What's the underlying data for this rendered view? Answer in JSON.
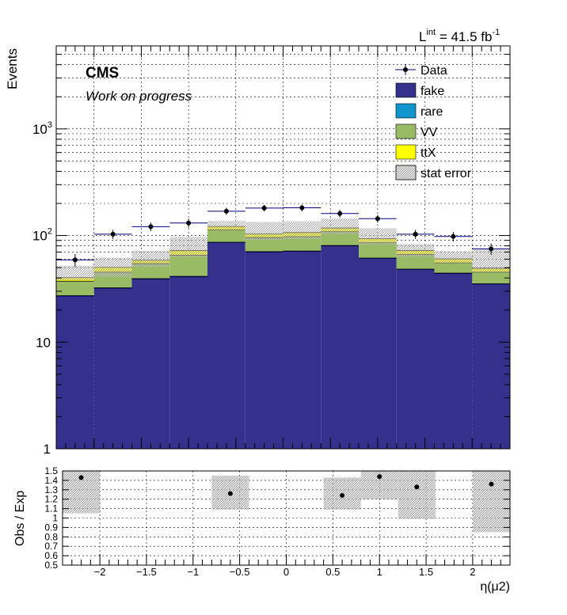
{
  "header": {
    "lumi_L": "L",
    "lumi_sup": "int",
    "lumi_value": " = 41.5 fb",
    "lumi_unit_sup": "-1"
  },
  "labels": {
    "cms": "CMS",
    "wip": "Work on progress"
  },
  "chart_data": [
    {
      "type": "bar",
      "stacked": true,
      "ylabel": "Events",
      "xlim": [
        -2.4,
        2.4
      ],
      "ylim": [
        1,
        6000
      ],
      "ylog": true,
      "grid": true,
      "legend_position": "top-right",
      "bin_edges": [
        -2.4,
        -2.0,
        -1.6,
        -1.2,
        -0.8,
        -0.4,
        0.0,
        0.4,
        0.8,
        1.2,
        1.6,
        2.0,
        2.4
      ],
      "data_x": [
        -2.2,
        -1.8,
        -1.4,
        -1.0,
        -0.6,
        -0.2,
        0.2,
        0.6,
        1.0,
        1.4,
        1.8,
        2.2
      ],
      "y_tick_labels": [
        {
          "value": 1,
          "label": "1"
        },
        {
          "value": 10,
          "label": "10"
        },
        {
          "value": 100,
          "label": "10",
          "sup": "2"
        },
        {
          "value": 1000,
          "label": "10",
          "sup": "3"
        }
      ],
      "series": [
        {
          "name": "fake",
          "color": "#35308b",
          "values": [
            27,
            32,
            39,
            41,
            86,
            70,
            71,
            80,
            61,
            48,
            44,
            35
          ]
        },
        {
          "name": "rare",
          "color": "#1095cc",
          "values": [
            0.3,
            0.3,
            0.4,
            0.4,
            0.6,
            0.6,
            0.6,
            0.6,
            0.5,
            0.4,
            0.4,
            0.3
          ]
        },
        {
          "name": "VV",
          "color": "#99bb66",
          "values": [
            10,
            13,
            15,
            24,
            26,
            25,
            26,
            28,
            24,
            18,
            11,
            10
          ]
        },
        {
          "name": "ttX",
          "color": "#ffff00",
          "values": [
            3,
            5,
            4,
            7,
            9,
            8,
            9,
            9,
            8,
            6,
            5,
            4
          ]
        }
      ],
      "stat_error": {
        "name": "stat error",
        "lower": [
          38,
          41,
          51,
          63,
          112,
          91,
          93,
          103,
          82,
          63,
          55,
          45
        ],
        "upper": [
          52,
          62,
          72,
          97,
          137,
          134,
          136,
          144,
          117,
          83,
          71,
          75
        ]
      },
      "data": {
        "name": "Data",
        "values": [
          59,
          103,
          121,
          131,
          169,
          181,
          182,
          161,
          144,
          103,
          98,
          75
        ],
        "errors": [
          8,
          10,
          11,
          12,
          13,
          13,
          13,
          13,
          12,
          10,
          10,
          9
        ]
      }
    },
    {
      "type": "scatter",
      "xlabel": "η(μ2)",
      "ylabel": "Obs / Exp",
      "xlim": [
        -2.4,
        2.4
      ],
      "ylim": [
        0.5,
        1.5
      ],
      "grid": true,
      "x_ticks": [
        -2,
        -1.5,
        -1,
        -0.5,
        0,
        0.5,
        1,
        1.5,
        2
      ],
      "x_tick_labels": [
        "−2",
        "−1.5",
        "−1",
        "−0.5",
        "0",
        "0.5",
        "1",
        "1.5",
        "2"
      ],
      "y_ticks": [
        0.5,
        0.6,
        0.7,
        0.8,
        0.9,
        1,
        1.1,
        1.2,
        1.3,
        1.4,
        1.5
      ],
      "y_tick_labels": [
        "0.5",
        "0.6",
        "0.7",
        "0.8",
        "0.9",
        "1",
        "1.1",
        "1.2",
        "1.3",
        "1.4",
        "1.5"
      ],
      "points": [
        {
          "x": -2.2,
          "y": 1.43
        },
        {
          "x": -0.6,
          "y": 1.26
        },
        {
          "x": 0.6,
          "y": 1.24
        },
        {
          "x": 1.0,
          "y": 1.44
        },
        {
          "x": 1.4,
          "y": 1.33
        },
        {
          "x": 2.2,
          "y": 1.36
        }
      ],
      "error_bands": [
        {
          "x0": -2.4,
          "x1": -2.0,
          "y0": 1.05,
          "y1": 1.5
        },
        {
          "x0": -0.8,
          "x1": -0.4,
          "y0": 1.09,
          "y1": 1.45
        },
        {
          "x0": 0.4,
          "x1": 0.8,
          "y0": 1.09,
          "y1": 1.43
        },
        {
          "x0": 0.8,
          "x1": 1.2,
          "y0": 1.2,
          "y1": 1.5
        },
        {
          "x0": 1.2,
          "x1": 1.6,
          "y0": 0.99,
          "y1": 1.5
        },
        {
          "x0": 2.0,
          "x1": 2.4,
          "y0": 0.85,
          "y1": 1.5
        }
      ]
    }
  ]
}
